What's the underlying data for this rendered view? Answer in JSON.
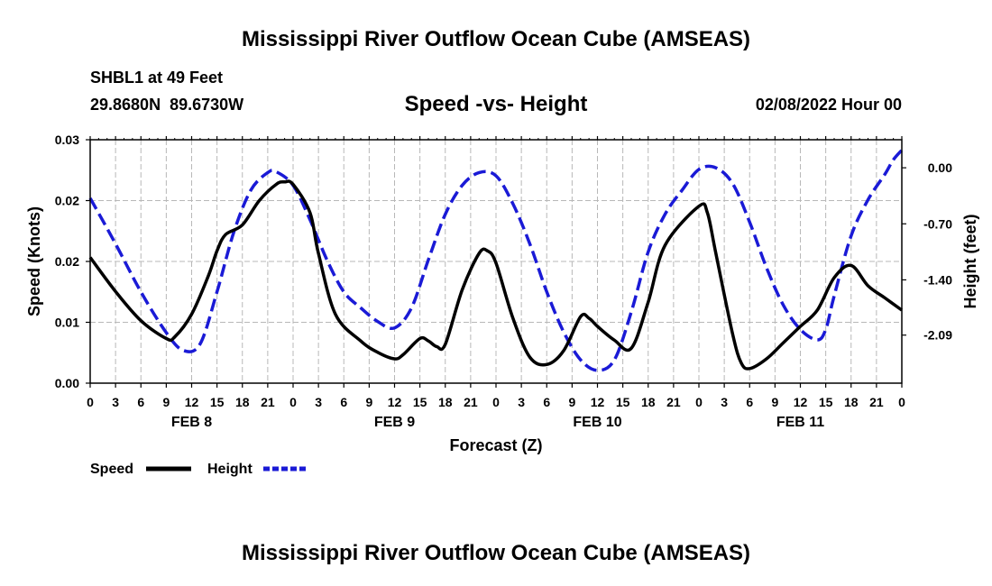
{
  "page": {
    "title": "Mississippi River Outflow Ocean Cube (AMSEAS)",
    "footer_title": "Mississippi River Outflow Ocean Cube (AMSEAS)",
    "station": "SHBL1 at 49 Feet",
    "coords": "29.8680N  89.6730W",
    "datetime": "02/08/2022 Hour 00"
  },
  "chart_data": {
    "type": "line",
    "title": "Speed -vs- Height",
    "xlabel": "Forecast (Z)",
    "ylabel": "Speed (Knots)",
    "y2label": "Height (feet)",
    "xlim": [
      0,
      96
    ],
    "ylim": [
      0,
      0.03
    ],
    "y2lim": [
      -2.69,
      0.35
    ],
    "grid": true,
    "x_tick_labels": [
      "0",
      "3",
      "6",
      "9",
      "12",
      "15",
      "18",
      "21",
      "0",
      "3",
      "6",
      "9",
      "12",
      "15",
      "18",
      "21",
      "0",
      "3",
      "6",
      "9",
      "12",
      "15",
      "18",
      "21",
      "0",
      "3",
      "6",
      "9",
      "12",
      "15",
      "18",
      "21",
      "0"
    ],
    "y_ticks": [
      0,
      0.0075,
      0.015,
      0.0225,
      0.03
    ],
    "y_tick_labels": [
      "0.00",
      "0.01",
      "0.02",
      "0.02",
      "0.03"
    ],
    "y2_ticks": [
      -2.09,
      -1.4,
      -0.7,
      0.0
    ],
    "y2_tick_labels": [
      "-2.09",
      "-1.40",
      "-0.70",
      "0.00"
    ],
    "day_labels": [
      {
        "hour": 12,
        "label": "FEB 8"
      },
      {
        "hour": 36,
        "label": "FEB 9"
      },
      {
        "hour": 60,
        "label": "FEB 10"
      },
      {
        "hour": 84,
        "label": "FEB 11"
      }
    ],
    "series": [
      {
        "name": "Speed",
        "axis": "left",
        "color": "#000000",
        "style": "solid",
        "points": [
          [
            0,
            0.0155
          ],
          [
            3,
            0.0113
          ],
          [
            6,
            0.0077
          ],
          [
            9,
            0.0055
          ],
          [
            10,
            0.0057
          ],
          [
            12,
            0.0085
          ],
          [
            14,
            0.0133
          ],
          [
            15,
            0.0163
          ],
          [
            16,
            0.0183
          ],
          [
            18,
            0.0195
          ],
          [
            20,
            0.0225
          ],
          [
            22,
            0.0245
          ],
          [
            23,
            0.0248
          ],
          [
            24,
            0.0245
          ],
          [
            26,
            0.021
          ],
          [
            27,
            0.016
          ],
          [
            29,
            0.0085
          ],
          [
            32,
            0.0052
          ],
          [
            34,
            0.0038
          ],
          [
            36,
            0.003
          ],
          [
            37,
            0.0035
          ],
          [
            39,
            0.0055
          ],
          [
            40,
            0.0052
          ],
          [
            41,
            0.0045
          ],
          [
            42,
            0.0048
          ],
          [
            44,
            0.0115
          ],
          [
            46,
            0.016
          ],
          [
            47,
            0.0163
          ],
          [
            48,
            0.0148
          ],
          [
            50,
            0.008
          ],
          [
            52,
            0.0032
          ],
          [
            54,
            0.0023
          ],
          [
            56,
            0.004
          ],
          [
            58,
            0.0082
          ],
          [
            59,
            0.008
          ],
          [
            60,
            0.007
          ],
          [
            62,
            0.0053
          ],
          [
            64,
            0.0043
          ],
          [
            66,
            0.01
          ],
          [
            68,
            0.017
          ],
          [
            72,
            0.0218
          ],
          [
            73,
            0.021
          ],
          [
            74,
            0.016
          ],
          [
            76,
            0.006
          ],
          [
            77,
            0.0025
          ],
          [
            78,
            0.0018
          ],
          [
            80,
            0.003
          ],
          [
            82,
            0.005
          ],
          [
            84,
            0.007
          ],
          [
            86,
            0.009
          ],
          [
            88,
            0.013
          ],
          [
            90,
            0.0145
          ],
          [
            92,
            0.012
          ],
          [
            94,
            0.0105
          ],
          [
            96,
            0.009
          ]
        ]
      },
      {
        "name": "Height",
        "axis": "right",
        "color": "#1a1ad6",
        "style": "dashed",
        "points": [
          [
            0,
            -0.38
          ],
          [
            3,
            -0.95
          ],
          [
            6,
            -1.55
          ],
          [
            9,
            -2.06
          ],
          [
            11,
            -2.28
          ],
          [
            13,
            -2.2
          ],
          [
            15,
            -1.55
          ],
          [
            17,
            -0.8
          ],
          [
            19,
            -0.28
          ],
          [
            21,
            -0.06
          ],
          [
            22,
            -0.05
          ],
          [
            24,
            -0.22
          ],
          [
            26,
            -0.65
          ],
          [
            28,
            -1.15
          ],
          [
            30,
            -1.55
          ],
          [
            32,
            -1.75
          ],
          [
            34,
            -1.92
          ],
          [
            36,
            -2.0
          ],
          [
            38,
            -1.75
          ],
          [
            40,
            -1.15
          ],
          [
            42,
            -0.58
          ],
          [
            44,
            -0.22
          ],
          [
            46,
            -0.06
          ],
          [
            48,
            -0.1
          ],
          [
            50,
            -0.45
          ],
          [
            52,
            -0.95
          ],
          [
            54,
            -1.55
          ],
          [
            56,
            -2.05
          ],
          [
            58,
            -2.4
          ],
          [
            60,
            -2.53
          ],
          [
            62,
            -2.4
          ],
          [
            64,
            -1.8
          ],
          [
            66,
            -1.05
          ],
          [
            68,
            -0.58
          ],
          [
            70,
            -0.28
          ],
          [
            72,
            -0.02
          ],
          [
            74,
            0.0
          ],
          [
            76,
            -0.2
          ],
          [
            78,
            -0.68
          ],
          [
            80,
            -1.25
          ],
          [
            82,
            -1.72
          ],
          [
            84,
            -2.02
          ],
          [
            86,
            -2.15
          ],
          [
            87,
            -2.02
          ],
          [
            88,
            -1.6
          ],
          [
            90,
            -0.85
          ],
          [
            92,
            -0.4
          ],
          [
            94,
            -0.08
          ],
          [
            95,
            0.1
          ],
          [
            96,
            0.22
          ]
        ]
      }
    ],
    "legend": [
      {
        "label": "Speed",
        "color": "#000000",
        "style": "solid"
      },
      {
        "label": "Height",
        "color": "#1a1ad6",
        "style": "dashed"
      }
    ]
  }
}
